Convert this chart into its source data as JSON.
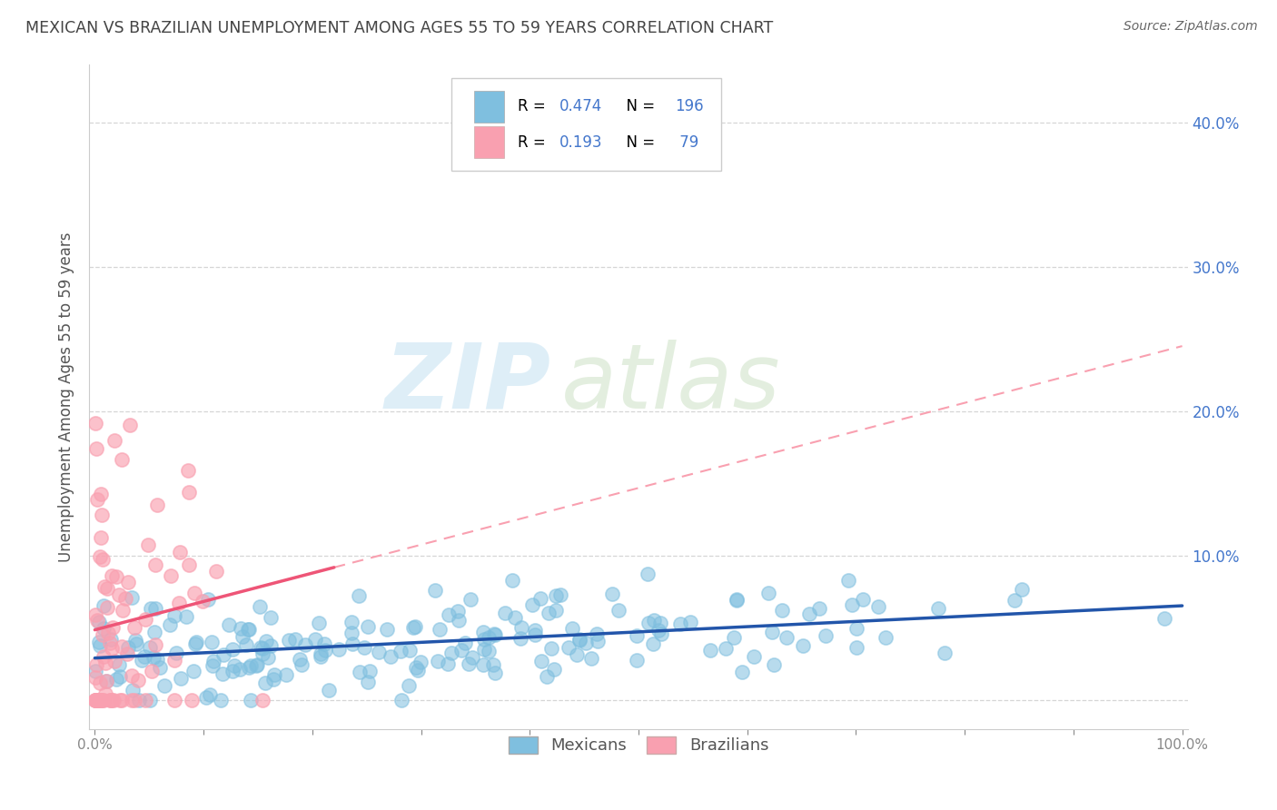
{
  "title": "MEXICAN VS BRAZILIAN UNEMPLOYMENT AMONG AGES 55 TO 59 YEARS CORRELATION CHART",
  "source": "Source: ZipAtlas.com",
  "ylabel": "Unemployment Among Ages 55 to 59 years",
  "xlim": [
    -0.005,
    1.005
  ],
  "ylim": [
    -0.02,
    0.44
  ],
  "xticks": [
    0.0,
    0.1,
    0.2,
    0.3,
    0.4,
    0.5,
    0.6,
    0.7,
    0.8,
    0.9,
    1.0
  ],
  "yticks": [
    0.0,
    0.1,
    0.2,
    0.3,
    0.4
  ],
  "ytick_labels": [
    "",
    "10.0%",
    "20.0%",
    "30.0%",
    "40.0%"
  ],
  "xtick_labels": [
    "0.0%",
    "",
    "",
    "",
    "",
    "",
    "",
    "",
    "",
    "",
    "100.0%"
  ],
  "mexicans_color": "#7fbfdf",
  "brazilians_color": "#f9a0b0",
  "mexican_R": 0.474,
  "mexican_N": 196,
  "brazilian_R": 0.193,
  "brazilian_N": 79,
  "watermark_zip": "ZIP",
  "watermark_atlas": "atlas",
  "background_color": "#ffffff",
  "grid_color": "#cccccc",
  "title_color": "#444444",
  "axis_color": "#4477cc",
  "tick_color": "#888888",
  "mexican_line_color": "#2255aa",
  "brazilian_line_color": "#ee5577",
  "legend_R_N_color": "#4477cc",
  "scatter_size": 120
}
